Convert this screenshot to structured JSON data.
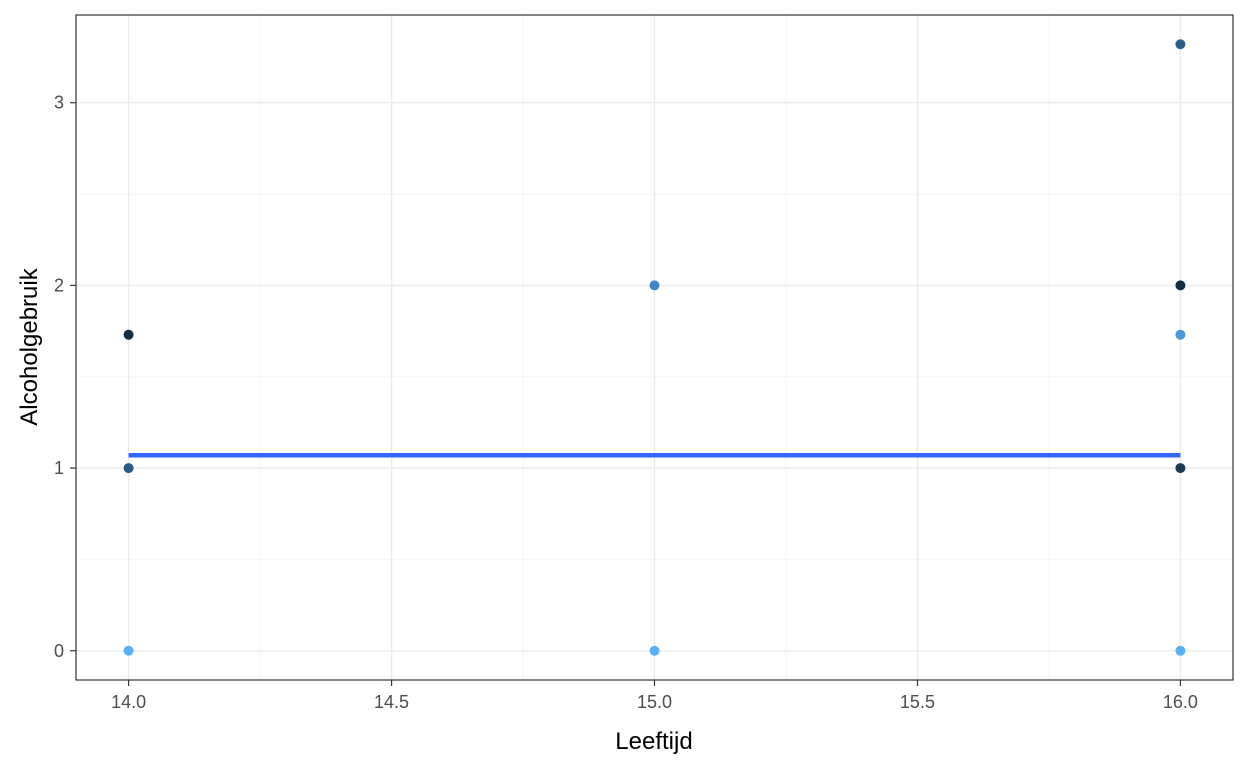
{
  "chart_data": {
    "type": "scatter",
    "title": "",
    "xlabel": "Leeftijd",
    "ylabel": "Alcoholgebruik",
    "xlim": [
      13.9,
      16.1
    ],
    "ylim": [
      -0.16,
      3.48
    ],
    "x_ticks": [
      14.0,
      14.5,
      15.0,
      15.5,
      16.0
    ],
    "x_tick_labels": [
      "14.0",
      "14.5",
      "15.0",
      "15.5",
      "16.0"
    ],
    "y_ticks": [
      0,
      1,
      2,
      3
    ],
    "y_tick_labels": [
      "0",
      "1",
      "2",
      "3"
    ],
    "grid": true,
    "legend": "none",
    "points": [
      {
        "x": 14,
        "y": 1.73,
        "color": "#132b43"
      },
      {
        "x": 14,
        "y": 1.0,
        "color": "#2b5b82"
      },
      {
        "x": 14,
        "y": 0.0,
        "color": "#56b1f7"
      },
      {
        "x": 15,
        "y": 2.0,
        "color": "#3f87c4"
      },
      {
        "x": 15,
        "y": 0.0,
        "color": "#56b1f7"
      },
      {
        "x": 16,
        "y": 3.32,
        "color": "#2e5f88"
      },
      {
        "x": 16,
        "y": 2.0,
        "color": "#132b43"
      },
      {
        "x": 16,
        "y": 1.73,
        "color": "#4b9ad8"
      },
      {
        "x": 16,
        "y": 1.0,
        "color": "#1c3b57"
      },
      {
        "x": 16,
        "y": 0.0,
        "color": "#56b1f7"
      }
    ],
    "fit_line": {
      "x": [
        14,
        16
      ],
      "y": [
        1.07,
        1.07
      ],
      "color": "#3366ff"
    },
    "colors": {
      "panel_border": "#333333",
      "grid_major": "#ebebeb",
      "grid_minor": "#f5f5f5"
    }
  }
}
